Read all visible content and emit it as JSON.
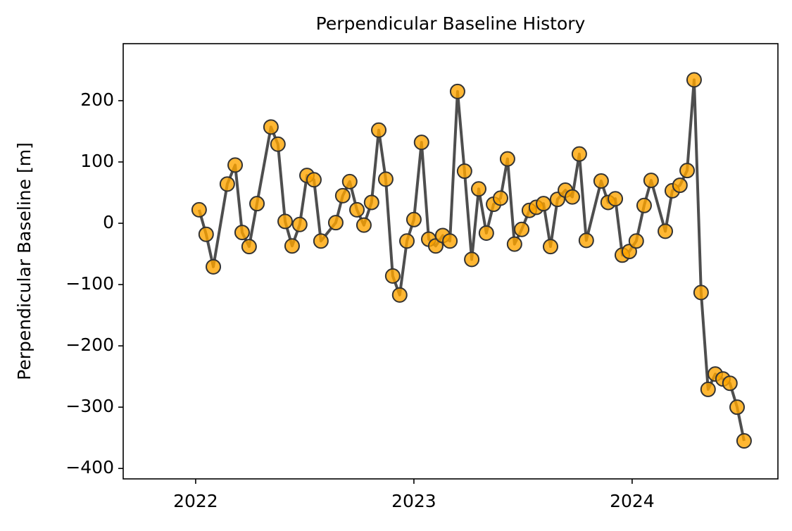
{
  "chart_data": {
    "type": "line",
    "title": "Perpendicular Baseline History",
    "ylabel": "Perpendicular Baseline [m]",
    "x": [
      2022.016,
      2022.048,
      2022.081,
      2022.145,
      2022.181,
      2022.213,
      2022.245,
      2022.281,
      2022.345,
      2022.377,
      2022.41,
      2022.442,
      2022.477,
      2022.51,
      2022.542,
      2022.574,
      2022.642,
      2022.674,
      2022.706,
      2022.739,
      2022.771,
      2022.806,
      2022.839,
      2022.871,
      2022.903,
      2022.935,
      2022.968,
      2023.0,
      2023.035,
      2023.068,
      2023.1,
      2023.132,
      2023.165,
      2023.2,
      2023.232,
      2023.265,
      2023.297,
      2023.332,
      2023.365,
      2023.397,
      2023.429,
      2023.461,
      2023.494,
      2023.529,
      2023.561,
      2023.594,
      2023.626,
      2023.658,
      2023.694,
      2023.726,
      2023.758,
      2023.79,
      2023.858,
      2023.89,
      2023.923,
      2023.955,
      2023.987,
      2024.019,
      2024.055,
      2024.087,
      2024.152,
      2024.184,
      2024.219,
      2024.252,
      2024.284,
      2024.316,
      2024.348,
      2024.381,
      2024.416,
      2024.448,
      2024.481,
      2024.513
    ],
    "series": [
      {
        "color": "#444444",
        "marker_color": "#ffa500",
        "values": [
          22,
          -18,
          -71,
          64,
          95,
          -15,
          -38,
          32,
          157,
          129,
          3,
          -37,
          -2,
          78,
          71,
          -29,
          1,
          45,
          68,
          22,
          -3,
          34,
          152,
          72,
          -86,
          -117,
          -29,
          6,
          132,
          -26,
          -37,
          -20,
          -29,
          215,
          85,
          -59,
          56,
          -16,
          31,
          41,
          105,
          -34,
          -10,
          21,
          26,
          32,
          -38,
          39,
          54,
          43,
          113,
          -28,
          69,
          34,
          40,
          -52,
          -46,
          -29,
          29,
          70,
          -13,
          53,
          62,
          86,
          234,
          -113,
          -271,
          -246,
          -254,
          -261,
          -300,
          -355
        ]
      }
    ],
    "xlim": [
      2021.668,
      2024.668
    ],
    "xticks": [
      2022,
      2023,
      2024
    ],
    "ylim": [
      -417,
      293
    ],
    "yticks": [
      {
        "value": -400,
        "label": "−400"
      },
      {
        "value": -300,
        "label": "−300"
      },
      {
        "value": -200,
        "label": "−200"
      },
      {
        "value": -100,
        "label": "−100"
      },
      0,
      100,
      200
    ]
  }
}
